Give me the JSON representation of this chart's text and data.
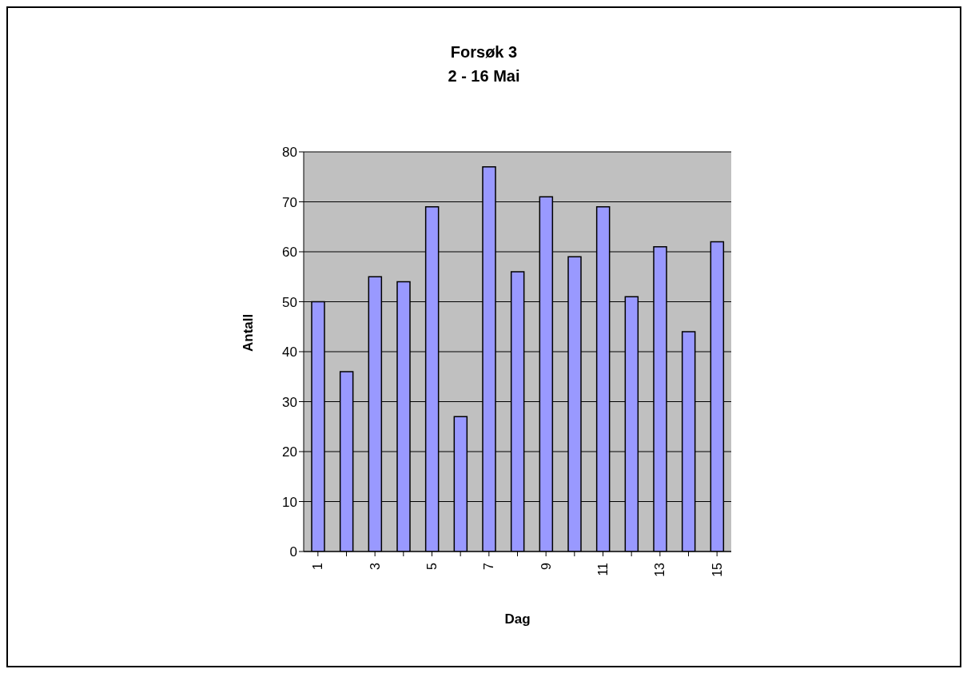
{
  "chart_data": {
    "type": "bar",
    "title": "Forsøk 3",
    "subtitle": "2 - 16 Mai",
    "xlabel": "Dag",
    "ylabel": "Antall",
    "categories": [
      "1",
      null,
      "3",
      null,
      "5",
      null,
      "7",
      null,
      "9",
      null,
      "11",
      null,
      "13",
      null,
      "15"
    ],
    "values": [
      50,
      36,
      55,
      54,
      69,
      27,
      77,
      56,
      71,
      59,
      69,
      51,
      61,
      44,
      62
    ],
    "color": "#9999ff",
    "ylim": [
      0,
      80
    ],
    "yticks": [
      0,
      10,
      20,
      30,
      40,
      50,
      60,
      70,
      80
    ],
    "grid": "y"
  }
}
